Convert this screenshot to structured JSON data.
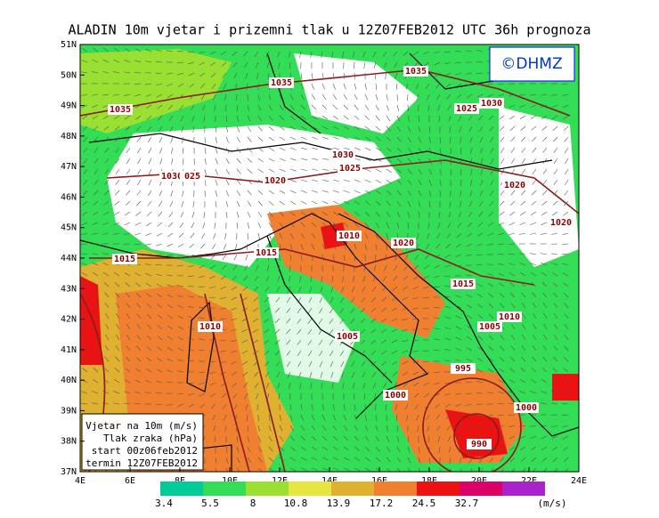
{
  "header": {
    "title": "ALADIN 10m vjetar i prizemni tlak u 12Z07FEB2012 UTC 36h prognoza",
    "logo": "©DHMZ"
  },
  "lat_labels": [
    "51N",
    "50N",
    "49N",
    "48N",
    "47N",
    "46N",
    "45N",
    "44N",
    "43N",
    "42N",
    "41N",
    "40N",
    "39N",
    "38N",
    "37N"
  ],
  "lon_labels": [
    "4E",
    "6E",
    "8E",
    "10E",
    "12E",
    "14E",
    "16E",
    "18E",
    "20E",
    "22E",
    "24E"
  ],
  "isobar_labels": [
    "1035",
    "1035",
    "1035",
    "1025",
    "1030",
    "1030",
    "1025",
    "1030",
    "025",
    "1020",
    "1020",
    "1020",
    "1010",
    "1020",
    "1015",
    "1015",
    "1015",
    "1010",
    "1005",
    "1010",
    "1005",
    "995",
    "1000",
    "1000",
    "990"
  ],
  "info_box": [
    "Vjetar na 10m (m/s)",
    "Tlak zraka (hPa)",
    "start 00z06feb2012",
    "termin 12Z07FEB2012"
  ],
  "colorbar": {
    "levels": [
      "3.4",
      "5.5",
      "8",
      "10.8",
      "13.9",
      "17.2",
      "24.5",
      "32.7"
    ],
    "unit": "(m/s)",
    "colors": [
      "#00cc99",
      "#33dd55",
      "#99e033",
      "#e6e640",
      "#e0b030",
      "#f08030",
      "#ee1111",
      "#dd0066",
      "#aa22cc"
    ]
  }
}
